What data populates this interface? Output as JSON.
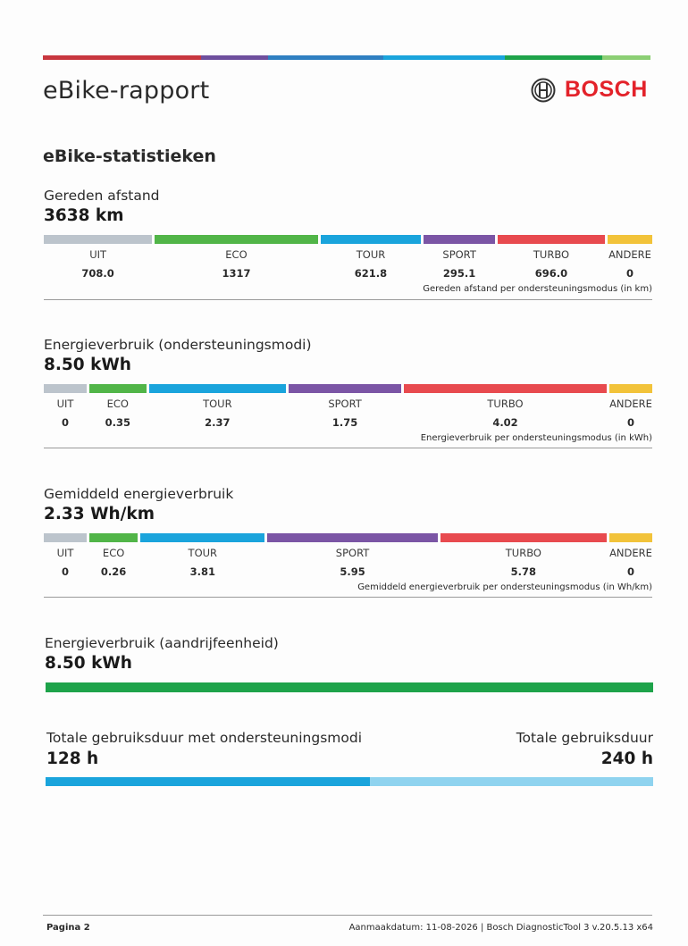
{
  "header": {
    "title": "eBike-rapport",
    "brand": "BOSCH",
    "brand_logo_icon": "bosch-armature-icon",
    "stripe_colors": [
      "#c8373f",
      "#6e4f9d",
      "#2f7fc1",
      "#1aa4dc",
      "#1ea34a",
      "#8ccf74"
    ]
  },
  "section_title": "eBike-statistieken",
  "colors": {
    "uit": "#bcc4cc",
    "eco": "#51b548",
    "tour": "#1aa4dc",
    "sport": "#7b55a5",
    "turbo": "#e84a4f",
    "andere": "#f2c33a"
  },
  "distance": {
    "label": "Gereden afstand",
    "total": "3638 km",
    "caption": "Gereden afstand per ondersteuningsmodus (in km)",
    "modes": [
      {
        "key": "uit",
        "name": "UIT",
        "value": 708.0,
        "display": "708.0"
      },
      {
        "key": "eco",
        "name": "ECO",
        "value": 1317,
        "display": "1317"
      },
      {
        "key": "tour",
        "name": "TOUR",
        "value": 621.8,
        "display": "621.8"
      },
      {
        "key": "sport",
        "name": "SPORT",
        "value": 295.1,
        "display": "295.1"
      },
      {
        "key": "turbo",
        "name": "TURBO",
        "value": 696.0,
        "display": "696.0"
      },
      {
        "key": "andere",
        "name": "ANDERE",
        "value": 0,
        "display": "0"
      }
    ]
  },
  "energy_modes": {
    "label": "Energieverbruik (ondersteuningsmodi)",
    "total": "8.50 kWh",
    "caption": "Energieverbruik per ondersteuningsmodus (in kWh)",
    "modes": [
      {
        "key": "uit",
        "name": "UIT",
        "value": 0,
        "display": "0"
      },
      {
        "key": "eco",
        "name": "ECO",
        "value": 0.35,
        "display": "0.35"
      },
      {
        "key": "tour",
        "name": "TOUR",
        "value": 2.37,
        "display": "2.37"
      },
      {
        "key": "sport",
        "name": "SPORT",
        "value": 1.75,
        "display": "1.75"
      },
      {
        "key": "turbo",
        "name": "TURBO",
        "value": 4.02,
        "display": "4.02"
      },
      {
        "key": "andere",
        "name": "ANDERE",
        "value": 0,
        "display": "0"
      }
    ]
  },
  "avg_energy": {
    "label": "Gemiddeld energieverbruik",
    "total": "2.33 Wh/km",
    "caption": "Gemiddeld energieverbruik per ondersteuningsmodus (in Wh/km)",
    "modes": [
      {
        "key": "uit",
        "name": "UIT",
        "value": 0,
        "display": "0"
      },
      {
        "key": "eco",
        "name": "ECO",
        "value": 0.26,
        "display": "0.26"
      },
      {
        "key": "tour",
        "name": "TOUR",
        "value": 3.81,
        "display": "3.81"
      },
      {
        "key": "sport",
        "name": "SPORT",
        "value": 5.95,
        "display": "5.95"
      },
      {
        "key": "turbo",
        "name": "TURBO",
        "value": 5.78,
        "display": "5.78"
      },
      {
        "key": "andere",
        "name": "ANDERE",
        "value": 0,
        "display": "0"
      }
    ]
  },
  "drive_energy": {
    "label": "Energieverbruik (aandrijfeenheid)",
    "total": "8.50 kWh",
    "bar_color": "#1ea34a"
  },
  "duration": {
    "assist_label": "Totale gebruiksduur met ondersteuningsmodi",
    "assist_value": "128 h",
    "assist_hours": 128,
    "total_label": "Totale gebruiksduur",
    "total_value": "240 h",
    "total_hours": 240
  },
  "footer": {
    "page": "Pagina 2",
    "meta": "Aanmaakdatum: 11-08-2026 | Bosch DiagnosticTool 3 v.20.5.13 x64"
  }
}
